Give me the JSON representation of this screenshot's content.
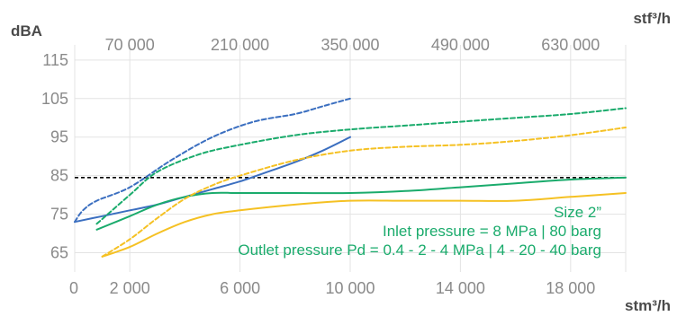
{
  "chart_data": {
    "type": "line",
    "ylabel": "dBA",
    "xlabel_bottom": "stm³/h",
    "xlabel_top": "stf³/h",
    "ylim": [
      60,
      118
    ],
    "xlim": [
      0,
      20000
    ],
    "y_ticks": [
      "65",
      "75",
      "85",
      "95",
      "105",
      "115"
    ],
    "y_tick_values": [
      65,
      75,
      85,
      95,
      105,
      115
    ],
    "x_bottom_ticks": [
      "0",
      "2 000",
      "6 000",
      "10 000",
      "14 000",
      "18 000"
    ],
    "x_bottom_tick_values": [
      0,
      2000,
      6000,
      10000,
      14000,
      18000
    ],
    "x_top_ticks": [
      "70 000",
      "210 000",
      "350 000",
      "490 000",
      "630 000"
    ],
    "x_top_tick_values": [
      2000,
      6000,
      10000,
      14000,
      18000
    ],
    "threshold": {
      "y": 84.5,
      "color": "#000000",
      "style": "dashed"
    },
    "annotations": [
      {
        "text": "Size 2”",
        "color": "#1aab6c"
      },
      {
        "text": "Inlet pressure = 8 MPa | 80 barg",
        "color": "#1aab6c"
      },
      {
        "text": "Outlet pressure Pd = 0.4 - 2 - 4 MPa | 4 - 20 - 40 barg",
        "color": "#1aab6c"
      }
    ],
    "series": [
      {
        "color": "#3b6fc0",
        "style": "dashed",
        "x": [
          0,
          300,
          800,
          2000,
          3500,
          5000,
          6500,
          8000,
          9000,
          10000
        ],
        "y": [
          73,
          76,
          78.5,
          82,
          89,
          95,
          99,
          101,
          103,
          105
        ]
      },
      {
        "color": "#3b6fc0",
        "style": "solid",
        "x": [
          0,
          1000,
          2000,
          3000,
          4000,
          5000,
          6000,
          7000,
          8000,
          9000,
          10000
        ],
        "y": [
          73,
          74.5,
          76,
          77.5,
          79.5,
          81.5,
          83.5,
          86,
          88.5,
          91.5,
          95
        ]
      },
      {
        "color": "#1aab6c",
        "style": "dashed",
        "x": [
          800,
          2000,
          3000,
          4500,
          6000,
          8000,
          10000,
          12000,
          14000,
          16000,
          18000,
          20000
        ],
        "y": [
          72.5,
          80,
          86,
          90.5,
          93,
          95.5,
          97,
          98,
          99,
          100,
          101,
          102.5
        ]
      },
      {
        "color": "#1aab6c",
        "style": "solid",
        "x": [
          800,
          2000,
          3000,
          4000,
          5000,
          6000,
          8000,
          10000,
          12000,
          14000,
          16000,
          18000,
          20000
        ],
        "y": [
          71,
          74.5,
          77.5,
          79.5,
          80.5,
          80.5,
          80.5,
          80.5,
          81,
          82,
          83,
          84,
          84.5
        ]
      },
      {
        "color": "#f5c123",
        "style": "dashed",
        "x": [
          1000,
          2000,
          3000,
          4000,
          5000,
          6000,
          8000,
          10000,
          12000,
          14000,
          16000,
          18000,
          20000
        ],
        "y": [
          64,
          68.5,
          74,
          79,
          82.5,
          85,
          89,
          91.5,
          92.5,
          93,
          94,
          95.5,
          97.5
        ]
      },
      {
        "color": "#f5c123",
        "style": "solid",
        "x": [
          1000,
          2000,
          3000,
          4000,
          5000,
          6000,
          8000,
          10000,
          12000,
          14000,
          16000,
          18000,
          20000
        ],
        "y": [
          64,
          66.5,
          70,
          73,
          75,
          76,
          77.5,
          78.5,
          78.5,
          78.5,
          78.5,
          79.5,
          80.5
        ]
      }
    ]
  }
}
